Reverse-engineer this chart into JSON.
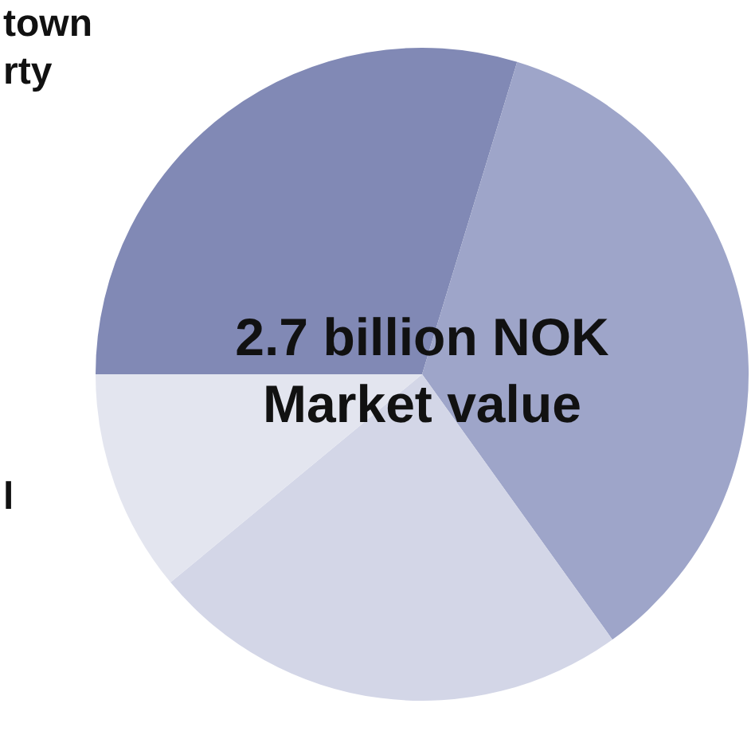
{
  "chart_data": {
    "type": "pie",
    "categories": [
      "town\nrty",
      null,
      null,
      "l"
    ],
    "values": [
      29.7,
      35.4,
      23.9,
      11.0
    ],
    "colors": [
      "#8189b5",
      "#9ea5c9",
      "#d3d6e7",
      "#e3e5ef"
    ],
    "annotations": [
      "2.7 billion NOK\nMarket value"
    ],
    "legend": false
  }
}
